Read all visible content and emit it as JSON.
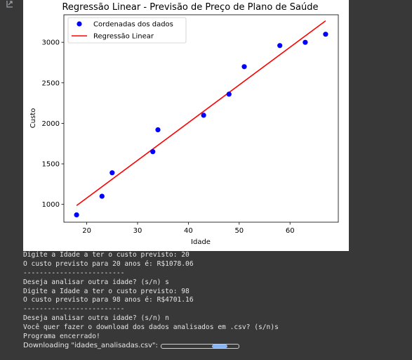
{
  "chart_data": {
    "type": "scatter",
    "title": "Regressão Linear - Previsão de Preço de Plano de Saúde",
    "xlabel": "Idade",
    "ylabel": "Custo",
    "xlim": [
      15.5,
      69.5
    ],
    "ylim": [
      780,
      3340
    ],
    "xticks": [
      20,
      30,
      40,
      50,
      60
    ],
    "yticks": [
      1000,
      1500,
      2000,
      2500,
      3000
    ],
    "legend_position": "top-left",
    "grid": false,
    "series": [
      {
        "name": "Cordenadas dos dados",
        "kind": "scatter",
        "color": "#0000ff",
        "points": [
          [
            18,
            870
          ],
          [
            23,
            1100
          ],
          [
            25,
            1390
          ],
          [
            33,
            1650
          ],
          [
            34,
            1920
          ],
          [
            43,
            2100
          ],
          [
            48,
            2360
          ],
          [
            51,
            2700
          ],
          [
            58,
            2960
          ],
          [
            63,
            3000
          ],
          [
            67,
            3100
          ]
        ]
      },
      {
        "name": "Regressão Linear",
        "kind": "line",
        "color": "#ff0000",
        "points": [
          [
            18,
            985
          ],
          [
            67,
            3265
          ]
        ]
      }
    ]
  },
  "console": {
    "lines": [
      "Digite a Idade a ter o custo previsto: 20",
      "O custo previsto para 20 anos é: R$1078.06",
      "-------------------------",
      "Deseja analisar outra idade? (s/n) s",
      "Digite a Idade a ter o custo previsto: 98",
      "O custo previsto para 98 anos é: R$4701.16",
      "-------------------------",
      "Deseja analisar outra idade? (s/n) n",
      "Você quer fazer o download dos dados analisados em .csv? (s/n)s",
      "Programa encerrado!"
    ],
    "download_label": "Downloading \"idades_analisadas.csv\":"
  },
  "icons": {
    "output_gutter": "output-icon"
  }
}
